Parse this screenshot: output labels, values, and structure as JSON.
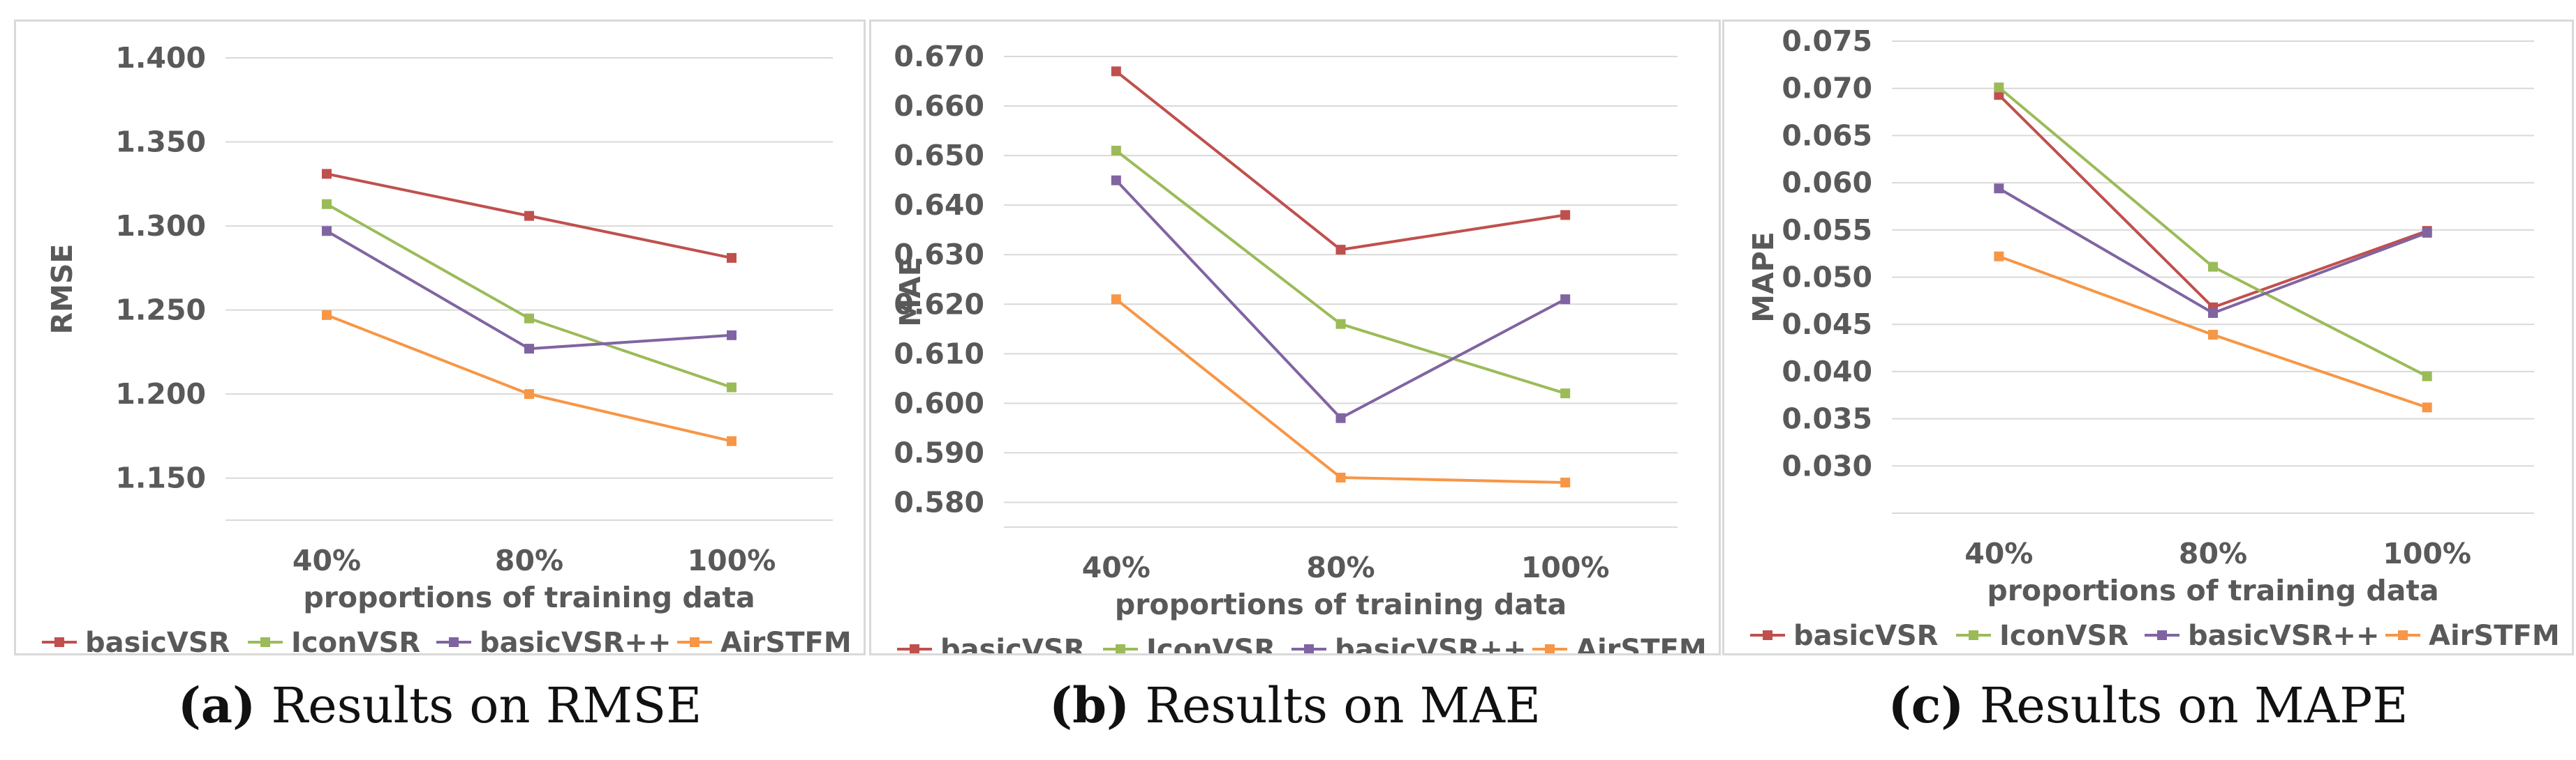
{
  "charts": [
    {
      "id": "rmse",
      "type": "line",
      "categories": [
        "40%",
        "80%",
        "100%"
      ],
      "xlabel": "proportions of training data",
      "ylabel": "RMSE",
      "ylim": [
        1.125,
        1.4
      ],
      "yticks": [
        "1.400",
        "1.350",
        "1.300",
        "1.250",
        "1.200",
        "1.150"
      ],
      "series": [
        {
          "name": "basicVSR",
          "color": "#c0504d",
          "values": [
            1.331,
            1.306,
            1.281
          ]
        },
        {
          "name": "IconVSR",
          "color": "#9bbb59",
          "values": [
            1.313,
            1.245,
            1.204
          ]
        },
        {
          "name": "basicVSR++",
          "color": "#8064a2",
          "values": [
            1.297,
            1.227,
            1.235
          ]
        },
        {
          "name": "AirSTFM",
          "color": "#f79646",
          "values": [
            1.247,
            1.2,
            1.172
          ]
        }
      ],
      "caption_label": "(a)",
      "caption_text": " Results on RMSE"
    },
    {
      "id": "mae",
      "type": "line",
      "categories": [
        "40%",
        "80%",
        "100%"
      ],
      "xlabel": "proportions of training data",
      "ylabel": "MAE",
      "ylim": [
        0.575,
        0.67
      ],
      "yticks": [
        "0.670",
        "0.660",
        "0.650",
        "0.640",
        "0.630",
        "0.620",
        "0.610",
        "0.600",
        "0.590",
        "0.580"
      ],
      "series": [
        {
          "name": "basicVSR",
          "color": "#c0504d",
          "values": [
            0.667,
            0.631,
            0.638
          ]
        },
        {
          "name": "IconVSR",
          "color": "#9bbb59",
          "values": [
            0.651,
            0.616,
            0.602
          ]
        },
        {
          "name": "basicVSR++",
          "color": "#8064a2",
          "values": [
            0.645,
            0.597,
            0.621
          ]
        },
        {
          "name": "AirSTFM",
          "color": "#f79646",
          "values": [
            0.621,
            0.585,
            0.584
          ]
        }
      ],
      "caption_label": "(b)",
      "caption_text": " Results on MAE"
    },
    {
      "id": "mape",
      "type": "line",
      "categories": [
        "40%",
        "80%",
        "100%"
      ],
      "xlabel": "proportions of training data",
      "ylabel": "MAPE",
      "ylim": [
        0.025,
        0.075
      ],
      "yticks": [
        "0.075",
        "0.070",
        "0.065",
        "0.060",
        "0.055",
        "0.050",
        "0.045",
        "0.040",
        "0.035",
        "0.030"
      ],
      "series": [
        {
          "name": "basicVSR",
          "color": "#c0504d",
          "values": [
            0.0693,
            0.0468,
            0.0549
          ]
        },
        {
          "name": "IconVSR",
          "color": "#9bbb59",
          "values": [
            0.0701,
            0.0511,
            0.0395
          ]
        },
        {
          "name": "basicVSR++",
          "color": "#8064a2",
          "values": [
            0.0594,
            0.0462,
            0.0547
          ]
        },
        {
          "name": "AirSTFM",
          "color": "#f79646",
          "values": [
            0.0522,
            0.0439,
            0.0362
          ]
        }
      ],
      "caption_label": "(c)",
      "caption_text": " Results on MAPE"
    }
  ]
}
